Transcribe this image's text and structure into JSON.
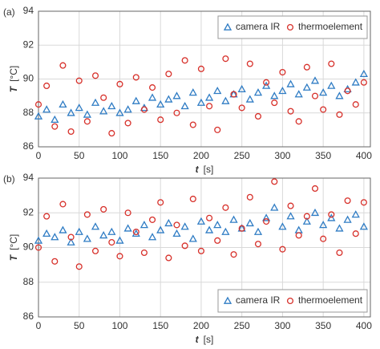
{
  "chart_data": [
    {
      "type": "scatter",
      "panel_label": "(a)",
      "xlabel": "t",
      "xunit": "[s]",
      "ylabel": "T",
      "yunit": "[°C]",
      "x": [
        0,
        10,
        20,
        30,
        40,
        50,
        60,
        70,
        80,
        90,
        100,
        110,
        120,
        130,
        140,
        150,
        160,
        170,
        180,
        190,
        200,
        210,
        220,
        230,
        240,
        250,
        260,
        270,
        280,
        290,
        300,
        310,
        320,
        330,
        340,
        350,
        360,
        370,
        380,
        390,
        400
      ],
      "xlim": [
        0,
        408
      ],
      "xticks": [
        0,
        50,
        100,
        150,
        200,
        250,
        300,
        350,
        400
      ],
      "ylim": [
        86,
        94
      ],
      "yticks": [
        86,
        88,
        90,
        92,
        94
      ],
      "grid": true,
      "legend": "upper right",
      "series": [
        {
          "name": "camera IR",
          "marker": "triangle",
          "color": "#2f7cc4",
          "values": [
            87.8,
            88.2,
            87.6,
            88.5,
            88.0,
            88.3,
            87.9,
            88.6,
            88.1,
            88.4,
            88.0,
            88.2,
            88.7,
            88.3,
            88.9,
            88.5,
            88.8,
            89.0,
            88.4,
            89.2,
            88.6,
            88.9,
            89.3,
            88.7,
            89.1,
            89.4,
            88.8,
            89.2,
            89.6,
            89.0,
            89.3,
            89.7,
            89.1,
            89.5,
            89.9,
            89.2,
            89.6,
            89.0,
            89.4,
            89.8,
            90.3
          ]
        },
        {
          "name": "thermoelement",
          "marker": "circle",
          "color": "#d7302a",
          "values": [
            88.5,
            89.6,
            87.2,
            90.8,
            86.9,
            89.9,
            87.5,
            90.2,
            88.9,
            86.8,
            89.7,
            87.4,
            90.1,
            88.2,
            89.5,
            87.6,
            90.3,
            88.0,
            91.1,
            87.3,
            90.6,
            88.4,
            87.0,
            91.2,
            89.1,
            88.3,
            90.9,
            87.8,
            89.8,
            88.6,
            90.4,
            88.1,
            87.5,
            90.7,
            89.0,
            88.2,
            90.9,
            87.9,
            89.3,
            88.5,
            89.8
          ]
        }
      ]
    },
    {
      "type": "scatter",
      "panel_label": "(b)",
      "xlabel": "t",
      "xunit": "[s]",
      "ylabel": "T",
      "yunit": "[°C]",
      "x": [
        0,
        10,
        20,
        30,
        40,
        50,
        60,
        70,
        80,
        90,
        100,
        110,
        120,
        130,
        140,
        150,
        160,
        170,
        180,
        190,
        200,
        210,
        220,
        230,
        240,
        250,
        260,
        270,
        280,
        290,
        300,
        310,
        320,
        330,
        340,
        350,
        360,
        370,
        380,
        390,
        400
      ],
      "xlim": [
        0,
        408
      ],
      "xticks": [
        0,
        50,
        100,
        150,
        200,
        250,
        300,
        350,
        400
      ],
      "ylim": [
        86,
        94
      ],
      "yticks": [
        86,
        88,
        90,
        92,
        94
      ],
      "grid": true,
      "legend": "lower right",
      "series": [
        {
          "name": "camera IR",
          "marker": "triangle",
          "color": "#2f7cc4",
          "values": [
            90.4,
            90.8,
            90.6,
            91.0,
            90.3,
            90.9,
            90.5,
            91.2,
            90.7,
            90.9,
            90.4,
            91.1,
            90.8,
            91.3,
            90.6,
            91.0,
            91.4,
            90.8,
            91.2,
            90.5,
            91.5,
            91.0,
            91.3,
            90.9,
            91.6,
            91.1,
            91.4,
            90.9,
            91.7,
            92.3,
            91.2,
            91.8,
            91.0,
            91.5,
            92.0,
            91.3,
            91.7,
            91.1,
            91.6,
            91.9,
            91.2
          ]
        },
        {
          "name": "thermoelement",
          "marker": "circle",
          "color": "#d7302a",
          "values": [
            90.0,
            91.8,
            89.2,
            92.5,
            90.6,
            88.9,
            91.9,
            89.8,
            92.2,
            90.3,
            89.5,
            92.0,
            90.9,
            89.7,
            91.6,
            92.6,
            89.4,
            91.3,
            90.1,
            92.8,
            89.8,
            91.7,
            90.4,
            92.3,
            89.6,
            91.1,
            92.9,
            90.2,
            91.5,
            93.8,
            89.9,
            92.4,
            90.7,
            91.8,
            93.4,
            90.5,
            91.9,
            89.7,
            92.7,
            90.8,
            92.6
          ]
        }
      ]
    }
  ]
}
